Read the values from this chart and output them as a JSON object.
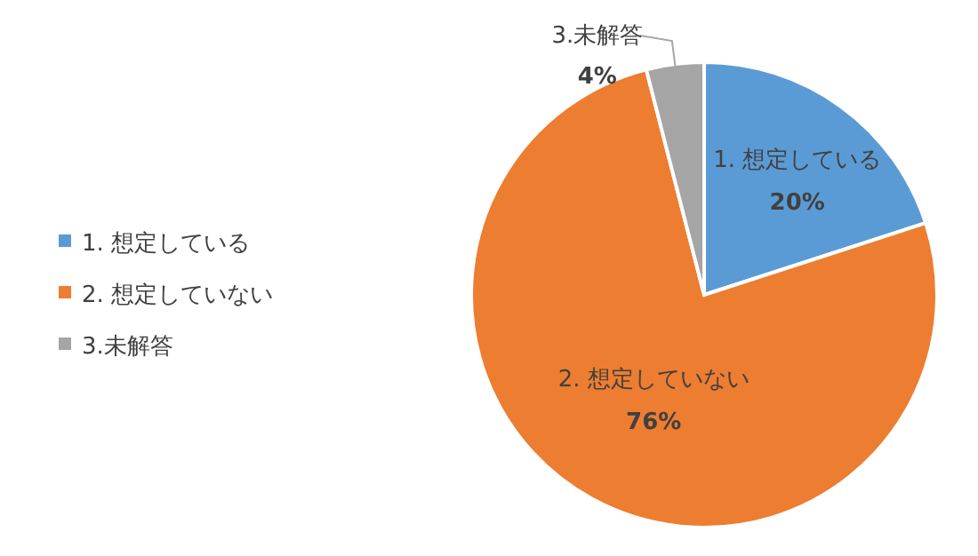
{
  "chart_data": {
    "type": "pie",
    "categories": [
      "1. 想定している",
      "2. 想定していない",
      "3.未解答"
    ],
    "values": [
      20,
      76,
      4
    ],
    "colors": [
      "#5b9bd5",
      "#ed7d31",
      "#a5a5a5"
    ],
    "value_labels": [
      "20%",
      "76%",
      "4%"
    ],
    "legend": "left"
  }
}
